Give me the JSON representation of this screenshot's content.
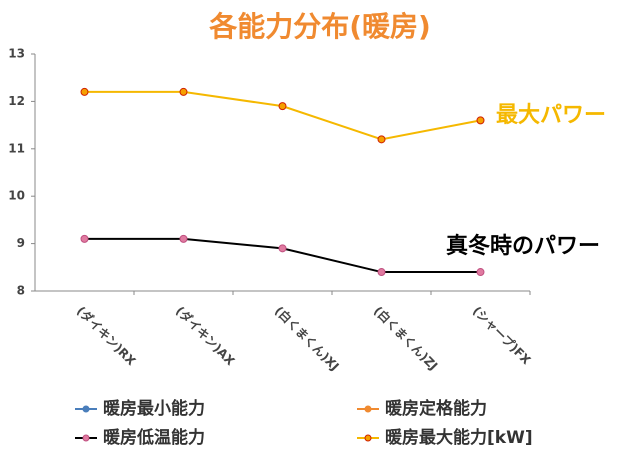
{
  "chart_data": {
    "type": "line",
    "title": "各能力分布(暖房)",
    "categories": [
      "(ダイキン)RX",
      "(ダイキン)AX",
      "(白くまくん)XJ",
      "(白くまくん)ZJ",
      "(シャープ)FX"
    ],
    "series": [
      {
        "name": "暖房最小能力",
        "color": "#4a7ebb",
        "marker": "#4a7ebb",
        "values": [
          null,
          null,
          null,
          null,
          null
        ]
      },
      {
        "name": "暖房定格能力",
        "color": "#f08a30",
        "marker": "#f08a30",
        "values": [
          null,
          null,
          null,
          null,
          null
        ]
      },
      {
        "name": "暖房低温能力",
        "color": "#000000",
        "marker": "#e07aa0",
        "values": [
          9.1,
          9.1,
          8.9,
          8.4,
          8.4
        ]
      },
      {
        "name": "暖房最大能力[kW]",
        "color": "#f5b800",
        "marker": "#f5a000",
        "values": [
          12.2,
          12.2,
          11.9,
          11.2,
          11.6
        ]
      }
    ],
    "ylim": [
      8,
      13
    ],
    "yticks": [
      8,
      9,
      10,
      11,
      12,
      13
    ],
    "annotations": [
      {
        "text": "最大パワー",
        "color": "#f5b800"
      },
      {
        "text": "真冬時のパワー",
        "color": "#000000"
      }
    ]
  }
}
